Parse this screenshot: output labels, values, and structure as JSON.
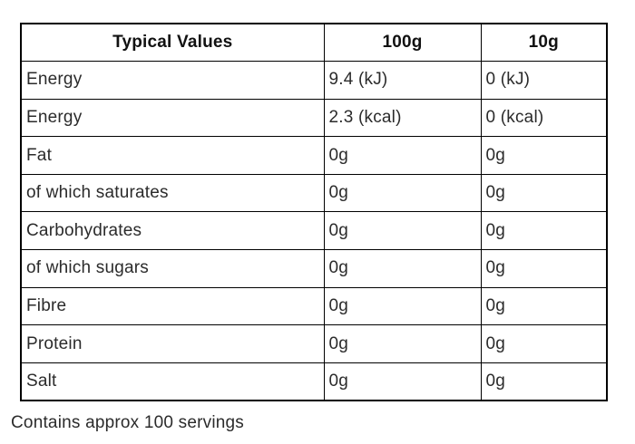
{
  "page": {
    "background": "#ffffff",
    "border_color": "#000000",
    "header_text_color": "#111111",
    "body_text_color": "#2b2b2b"
  },
  "table": {
    "headers": [
      "Typical Values",
      "100g",
      "10g"
    ],
    "rows": [
      {
        "label": "Energy",
        "per100g": "9.4 (kJ)",
        "per10g": "0 (kJ)"
      },
      {
        "label": "Energy",
        "per100g": "2.3 (kcal)",
        "per10g": "0 (kcal)"
      },
      {
        "label": "Fat",
        "per100g": "0g",
        "per10g": "0g"
      },
      {
        "label": "of which saturates",
        "per100g": "0g",
        "per10g": "0g"
      },
      {
        "label": "Carbohydrates",
        "per100g": "0g",
        "per10g": "0g"
      },
      {
        "label": "of which sugars",
        "per100g": "0g",
        "per10g": "0g"
      },
      {
        "label": "Fibre",
        "per100g": "0g",
        "per10g": "0g"
      },
      {
        "label": "Protein",
        "per100g": "0g",
        "per10g": "0g"
      },
      {
        "label": "Salt",
        "per100g": "0g",
        "per10g": "0g"
      }
    ]
  },
  "footer": {
    "note": "Contains approx 100 servings"
  }
}
